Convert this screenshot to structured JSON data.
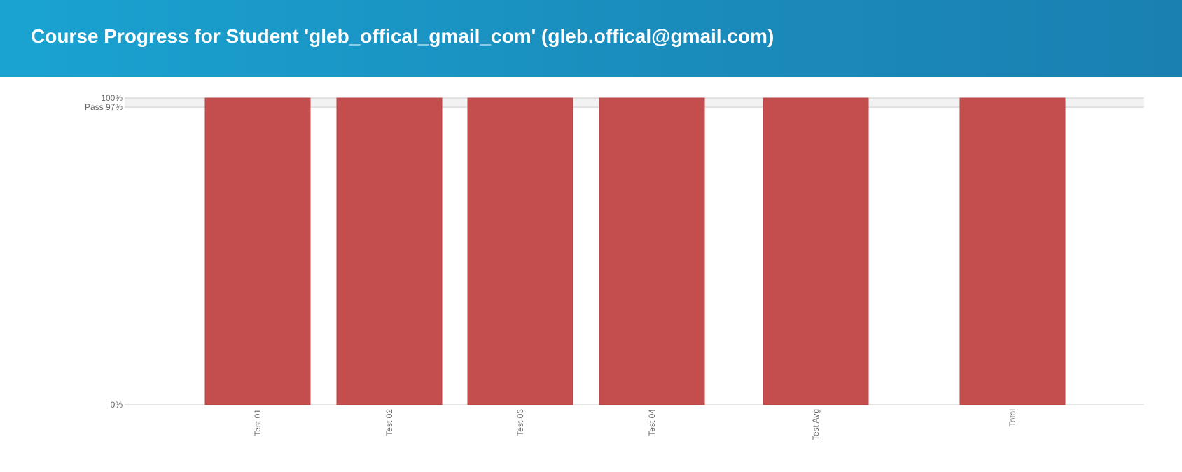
{
  "header": {
    "title": "Course Progress for Student 'gleb_offical_gmail_com' (gleb.offical@gmail.com)"
  },
  "colors": {
    "header_start": "#1aa3d1",
    "header_end": "#1a80b2",
    "bar": "#c44e4e",
    "pass_band": "#f2f2f2",
    "axis": "#cccccc"
  },
  "chart_data": {
    "type": "bar",
    "categories": [
      "Test 01",
      "Test 02",
      "Test 03",
      "Test 04",
      "Test Avg",
      "Total"
    ],
    "values": [
      100,
      100,
      100,
      100,
      100,
      100
    ],
    "ylim": [
      0,
      100
    ],
    "unit": "%",
    "y_tick_labels": [
      "0%",
      "100%"
    ],
    "pass_threshold": 97,
    "pass_label": "Pass 97%",
    "grid": false,
    "legend": "none"
  }
}
